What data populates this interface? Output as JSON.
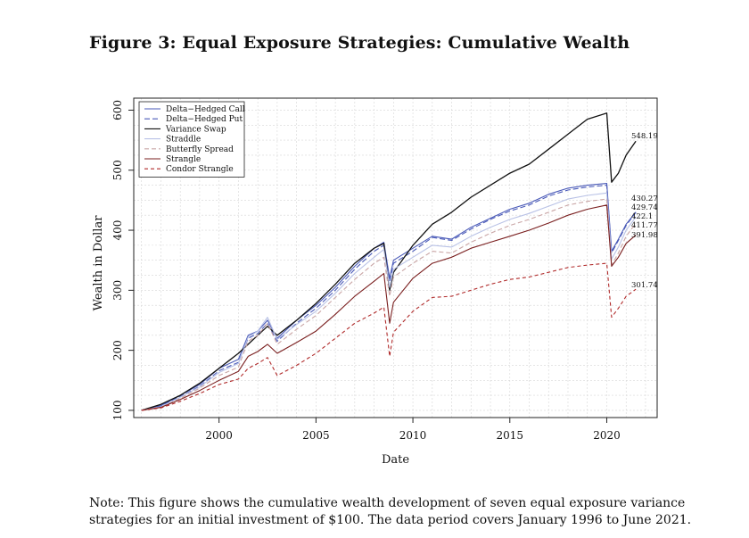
{
  "figure": {
    "title": "Figure 3: Equal Exposure Strategies: Cumulative Wealth",
    "note": "Note: This figure shows the cumulative wealth development of seven equal exposure variance strategies for an initial investment of $100. The data period covers January 1996 to June 2021."
  },
  "chart_data": {
    "type": "line",
    "xlabel": "Date",
    "ylabel": "Wealth in Dollar",
    "xlim": [
      1995.6,
      2022.6
    ],
    "ylim": [
      88,
      620
    ],
    "x_ticks": [
      2000,
      2005,
      2010,
      2015,
      2020
    ],
    "y_ticks": [
      100,
      200,
      300,
      400,
      500,
      600
    ],
    "grid": true,
    "legend_position": "top-left",
    "series": [
      {
        "name": "Delta−Hedged Call",
        "color": "#4a5ab8",
        "dash": "solid",
        "final": "430.27",
        "points": [
          [
            1996,
            100
          ],
          [
            1997,
            108
          ],
          [
            1998,
            125
          ],
          [
            1999,
            143
          ],
          [
            2000,
            170
          ],
          [
            2001,
            185
          ],
          [
            2001.5,
            225
          ],
          [
            2002,
            232
          ],
          [
            2002.5,
            250
          ],
          [
            2003,
            220
          ],
          [
            2004,
            250
          ],
          [
            2005,
            275
          ],
          [
            2006,
            305
          ],
          [
            2007,
            340
          ],
          [
            2008,
            370
          ],
          [
            2008.5,
            380
          ],
          [
            2008.8,
            320
          ],
          [
            2009,
            350
          ],
          [
            2010,
            370
          ],
          [
            2011,
            390
          ],
          [
            2012,
            385
          ],
          [
            2013,
            405
          ],
          [
            2014,
            420
          ],
          [
            2015,
            435
          ],
          [
            2016,
            445
          ],
          [
            2017,
            460
          ],
          [
            2018,
            470
          ],
          [
            2019,
            475
          ],
          [
            2020.0,
            478
          ],
          [
            2020.25,
            365
          ],
          [
            2020.6,
            385
          ],
          [
            2021.0,
            410
          ],
          [
            2021.5,
            430.27
          ]
        ]
      },
      {
        "name": "Delta−Hedged Put",
        "color": "#4a5ab8",
        "dash": "6,3",
        "final": "429.74",
        "points": [
          [
            1996,
            100
          ],
          [
            1997,
            107
          ],
          [
            1998,
            123
          ],
          [
            1999,
            140
          ],
          [
            2000,
            166
          ],
          [
            2001,
            180
          ],
          [
            2001.5,
            220
          ],
          [
            2002,
            228
          ],
          [
            2002.5,
            245
          ],
          [
            2003,
            215
          ],
          [
            2004,
            245
          ],
          [
            2005,
            270
          ],
          [
            2006,
            300
          ],
          [
            2007,
            335
          ],
          [
            2008,
            365
          ],
          [
            2008.5,
            375
          ],
          [
            2008.8,
            315
          ],
          [
            2009,
            345
          ],
          [
            2010,
            365
          ],
          [
            2011,
            388
          ],
          [
            2012,
            383
          ],
          [
            2013,
            402
          ],
          [
            2014,
            418
          ],
          [
            2015,
            432
          ],
          [
            2016,
            442
          ],
          [
            2017,
            457
          ],
          [
            2018,
            467
          ],
          [
            2019,
            472
          ],
          [
            2020.0,
            475
          ],
          [
            2020.25,
            362
          ],
          [
            2020.6,
            383
          ],
          [
            2021.0,
            408
          ],
          [
            2021.5,
            429.74
          ]
        ]
      },
      {
        "name": "Variance Swap",
        "color": "#111111",
        "dash": "solid",
        "final": "548.19",
        "points": [
          [
            1996,
            100
          ],
          [
            1997,
            110
          ],
          [
            1998,
            125
          ],
          [
            1999,
            145
          ],
          [
            2000,
            170
          ],
          [
            2001,
            195
          ],
          [
            2002,
            225
          ],
          [
            2002.5,
            240
          ],
          [
            2003,
            225
          ],
          [
            2004,
            250
          ],
          [
            2005,
            278
          ],
          [
            2006,
            310
          ],
          [
            2007,
            345
          ],
          [
            2008,
            370
          ],
          [
            2008.5,
            378
          ],
          [
            2008.8,
            300
          ],
          [
            2009,
            330
          ],
          [
            2010,
            375
          ],
          [
            2011,
            410
          ],
          [
            2012,
            430
          ],
          [
            2013,
            455
          ],
          [
            2014,
            475
          ],
          [
            2015,
            495
          ],
          [
            2016,
            510
          ],
          [
            2017,
            535
          ],
          [
            2018,
            560
          ],
          [
            2019,
            585
          ],
          [
            2020.0,
            595
          ],
          [
            2020.25,
            480
          ],
          [
            2020.6,
            495
          ],
          [
            2021.0,
            525
          ],
          [
            2021.5,
            548.19
          ]
        ]
      },
      {
        "name": "Straddle",
        "color": "#b9c2e6",
        "dash": "solid",
        "final": "422.1",
        "points": [
          [
            1996,
            100
          ],
          [
            1997,
            106
          ],
          [
            1998,
            122
          ],
          [
            1999,
            139
          ],
          [
            2000,
            163
          ],
          [
            2001,
            178
          ],
          [
            2001.5,
            222
          ],
          [
            2002,
            232
          ],
          [
            2002.5,
            255
          ],
          [
            2003,
            218
          ],
          [
            2004,
            243
          ],
          [
            2005,
            265
          ],
          [
            2006,
            295
          ],
          [
            2007,
            328
          ],
          [
            2008,
            355
          ],
          [
            2008.5,
            368
          ],
          [
            2008.8,
            305
          ],
          [
            2009,
            335
          ],
          [
            2010,
            355
          ],
          [
            2011,
            375
          ],
          [
            2012,
            372
          ],
          [
            2013,
            390
          ],
          [
            2014,
            405
          ],
          [
            2015,
            418
          ],
          [
            2016,
            428
          ],
          [
            2017,
            440
          ],
          [
            2018,
            452
          ],
          [
            2019,
            458
          ],
          [
            2020.0,
            462
          ],
          [
            2020.25,
            352
          ],
          [
            2020.6,
            372
          ],
          [
            2021.0,
            400
          ],
          [
            2021.5,
            422.1
          ]
        ]
      },
      {
        "name": "Butterfly Spread",
        "color": "#c9a5a5",
        "dash": "5,3",
        "final": "411.77",
        "points": [
          [
            1996,
            100
          ],
          [
            1997,
            105
          ],
          [
            1998,
            120
          ],
          [
            1999,
            137
          ],
          [
            2000,
            158
          ],
          [
            2001,
            172
          ],
          [
            2001.5,
            215
          ],
          [
            2002,
            225
          ],
          [
            2002.5,
            245
          ],
          [
            2003,
            210
          ],
          [
            2004,
            235
          ],
          [
            2005,
            258
          ],
          [
            2006,
            288
          ],
          [
            2007,
            318
          ],
          [
            2008,
            345
          ],
          [
            2008.5,
            355
          ],
          [
            2008.8,
            290
          ],
          [
            2009,
            322
          ],
          [
            2010,
            345
          ],
          [
            2011,
            365
          ],
          [
            2012,
            362
          ],
          [
            2013,
            380
          ],
          [
            2014,
            395
          ],
          [
            2015,
            408
          ],
          [
            2016,
            418
          ],
          [
            2017,
            430
          ],
          [
            2018,
            442
          ],
          [
            2019,
            448
          ],
          [
            2020.0,
            452
          ],
          [
            2020.25,
            342
          ],
          [
            2020.6,
            362
          ],
          [
            2021.0,
            390
          ],
          [
            2021.5,
            411.77
          ]
        ]
      },
      {
        "name": "Strangle",
        "color": "#7a1f1f",
        "dash": "solid",
        "final": "391.98",
        "points": [
          [
            1996,
            100
          ],
          [
            1997,
            105
          ],
          [
            1998,
            118
          ],
          [
            1999,
            133
          ],
          [
            2000,
            150
          ],
          [
            2001,
            165
          ],
          [
            2001.5,
            190
          ],
          [
            2002,
            198
          ],
          [
            2002.5,
            210
          ],
          [
            2003,
            195
          ],
          [
            2004,
            213
          ],
          [
            2005,
            232
          ],
          [
            2006,
            260
          ],
          [
            2007,
            290
          ],
          [
            2008,
            315
          ],
          [
            2008.5,
            328
          ],
          [
            2008.8,
            245
          ],
          [
            2009,
            280
          ],
          [
            2010,
            320
          ],
          [
            2011,
            345
          ],
          [
            2012,
            355
          ],
          [
            2013,
            370
          ],
          [
            2014,
            380
          ],
          [
            2015,
            390
          ],
          [
            2016,
            400
          ],
          [
            2017,
            412
          ],
          [
            2018,
            425
          ],
          [
            2019,
            435
          ],
          [
            2020.0,
            442
          ],
          [
            2020.25,
            340
          ],
          [
            2020.6,
            355
          ],
          [
            2021.0,
            378
          ],
          [
            2021.5,
            391.98
          ]
        ]
      },
      {
        "name": "Condor Strangle",
        "color": "#b02a2a",
        "dash": "4,3",
        "final": "301.74",
        "points": [
          [
            1996,
            100
          ],
          [
            1997,
            104
          ],
          [
            1998,
            115
          ],
          [
            1999,
            128
          ],
          [
            2000,
            143
          ],
          [
            2001,
            152
          ],
          [
            2001.5,
            170
          ],
          [
            2002,
            178
          ],
          [
            2002.5,
            188
          ],
          [
            2003,
            158
          ],
          [
            2004,
            175
          ],
          [
            2005,
            195
          ],
          [
            2006,
            220
          ],
          [
            2007,
            245
          ],
          [
            2008,
            262
          ],
          [
            2008.5,
            272
          ],
          [
            2008.8,
            190
          ],
          [
            2009,
            230
          ],
          [
            2010,
            265
          ],
          [
            2011,
            288
          ],
          [
            2012,
            290
          ],
          [
            2013,
            300
          ],
          [
            2014,
            310
          ],
          [
            2015,
            318
          ],
          [
            2016,
            322
          ],
          [
            2017,
            330
          ],
          [
            2018,
            338
          ],
          [
            2019,
            342
          ],
          [
            2020.0,
            345
          ],
          [
            2020.25,
            255
          ],
          [
            2020.6,
            270
          ],
          [
            2021.0,
            290
          ],
          [
            2021.5,
            301.74
          ]
        ]
      }
    ]
  }
}
